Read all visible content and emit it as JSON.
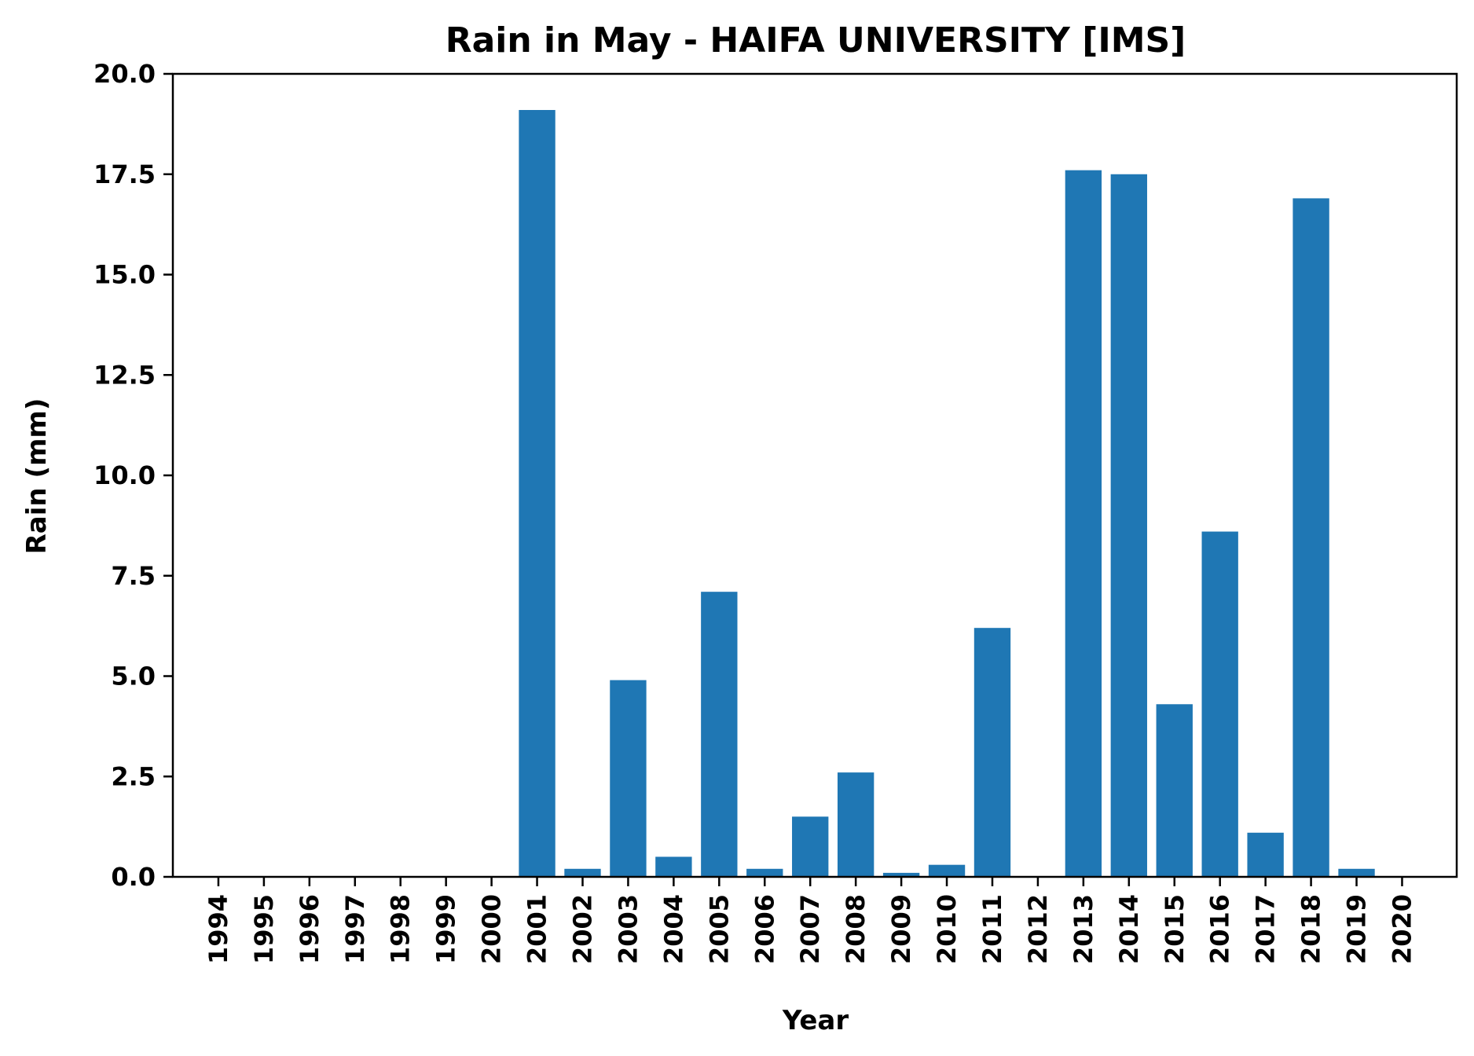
{
  "chart_data": {
    "type": "bar",
    "title": "Rain in May - HAIFA UNIVERSITY [IMS]",
    "xlabel": "Year",
    "ylabel": "Rain (mm)",
    "ylim": [
      0,
      20
    ],
    "yticks": [
      "0.0",
      "2.5",
      "5.0",
      "7.5",
      "10.0",
      "12.5",
      "15.0",
      "17.5",
      "20.0"
    ],
    "grid": false,
    "bar_color": "#1f77b4",
    "categories": [
      "1994",
      "1995",
      "1996",
      "1997",
      "1998",
      "1999",
      "2000",
      "2001",
      "2002",
      "2003",
      "2004",
      "2005",
      "2006",
      "2007",
      "2008",
      "2009",
      "2010",
      "2011",
      "2012",
      "2013",
      "2014",
      "2015",
      "2016",
      "2017",
      "2018",
      "2019",
      "2020"
    ],
    "values": [
      0,
      0,
      0,
      0,
      0,
      0,
      0,
      19.1,
      0.2,
      4.9,
      0.5,
      7.1,
      0.2,
      1.5,
      2.6,
      0.1,
      0.3,
      6.2,
      0,
      17.6,
      17.5,
      4.3,
      8.6,
      1.1,
      16.9,
      0.2,
      0
    ]
  }
}
